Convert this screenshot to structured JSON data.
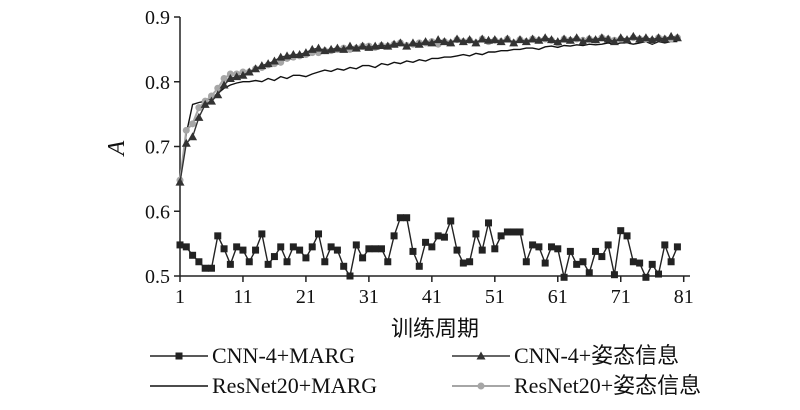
{
  "chart_data": {
    "type": "line",
    "title": "",
    "xlabel": "训练周期",
    "ylabel": "A",
    "xlim": [
      1,
      82
    ],
    "ylim": [
      0.5,
      0.9
    ],
    "xticks": [
      1,
      11,
      21,
      31,
      41,
      51,
      61,
      71,
      81
    ],
    "yticks": [
      0.5,
      0.6,
      0.7,
      0.8,
      0.9
    ],
    "yticks_text": [
      "0.5",
      "0.6",
      "0.7",
      "0.8",
      "0.9"
    ],
    "grid": false,
    "legend_position": "bottom",
    "series": [
      {
        "name": "CNN-4+MARG",
        "marker": "square",
        "color": "#222222",
        "values": [
          0.548,
          0.545,
          0.532,
          0.522,
          0.512,
          0.512,
          0.562,
          0.542,
          0.518,
          0.545,
          0.54,
          0.522,
          0.54,
          0.565,
          0.518,
          0.53,
          0.545,
          0.522,
          0.545,
          0.54,
          0.528,
          0.545,
          0.565,
          0.522,
          0.545,
          0.54,
          0.515,
          0.5,
          0.548,
          0.528,
          0.542,
          0.542,
          0.542,
          0.522,
          0.562,
          0.59,
          0.59,
          0.538,
          0.515,
          0.552,
          0.545,
          0.562,
          0.56,
          0.585,
          0.54,
          0.52,
          0.522,
          0.565,
          0.54,
          0.582,
          0.542,
          0.562,
          0.568,
          0.568,
          0.568,
          0.522,
          0.548,
          0.545,
          0.52,
          0.545,
          0.542,
          0.498,
          0.538,
          0.518,
          0.522,
          0.505,
          0.538,
          0.53,
          0.548,
          0.502,
          0.57,
          0.562,
          0.522,
          0.52,
          0.498,
          0.518,
          0.503,
          0.548,
          0.522,
          0.545
        ]
      },
      {
        "name": "CNN-4+姿态信息",
        "marker": "triangle",
        "color": "#333333",
        "values": [
          0.645,
          0.705,
          0.715,
          0.745,
          0.765,
          0.77,
          0.78,
          0.795,
          0.805,
          0.808,
          0.81,
          0.815,
          0.82,
          0.825,
          0.828,
          0.832,
          0.838,
          0.84,
          0.842,
          0.842,
          0.845,
          0.85,
          0.852,
          0.848,
          0.85,
          0.852,
          0.85,
          0.855,
          0.852,
          0.855,
          0.853,
          0.855,
          0.856,
          0.855,
          0.858,
          0.86,
          0.855,
          0.86,
          0.858,
          0.862,
          0.86,
          0.865,
          0.862,
          0.86,
          0.866,
          0.862,
          0.865,
          0.86,
          0.866,
          0.864,
          0.865,
          0.862,
          0.866,
          0.86,
          0.865,
          0.862,
          0.866,
          0.864,
          0.868,
          0.865,
          0.862,
          0.866,
          0.864,
          0.868,
          0.862,
          0.866,
          0.865,
          0.868,
          0.866,
          0.862,
          0.868,
          0.865,
          0.87,
          0.866,
          0.868,
          0.865,
          0.868,
          0.866,
          0.87,
          0.868
        ]
      },
      {
        "name": "ResNet20+MARG",
        "marker": "none",
        "color": "#111111",
        "values": [
          0.645,
          0.72,
          0.765,
          0.768,
          0.77,
          0.775,
          0.782,
          0.79,
          0.795,
          0.798,
          0.8,
          0.8,
          0.802,
          0.8,
          0.805,
          0.802,
          0.808,
          0.805,
          0.81,
          0.81,
          0.808,
          0.812,
          0.815,
          0.818,
          0.816,
          0.82,
          0.818,
          0.822,
          0.82,
          0.825,
          0.825,
          0.822,
          0.828,
          0.826,
          0.83,
          0.828,
          0.832,
          0.83,
          0.834,
          0.832,
          0.836,
          0.836,
          0.838,
          0.838,
          0.84,
          0.842,
          0.84,
          0.844,
          0.842,
          0.846,
          0.846,
          0.848,
          0.848,
          0.85,
          0.85,
          0.852,
          0.852,
          0.85,
          0.854,
          0.855,
          0.853,
          0.856,
          0.855,
          0.857,
          0.856,
          0.858,
          0.857,
          0.858,
          0.86,
          0.858,
          0.86,
          0.86,
          0.858,
          0.86,
          0.862,
          0.858,
          0.862,
          0.86,
          0.862,
          0.862
        ]
      },
      {
        "name": "ResNet20+姿态信息",
        "marker": "circle",
        "color": "#a6a6a6",
        "values": [
          0.648,
          0.725,
          0.735,
          0.76,
          0.77,
          0.778,
          0.79,
          0.805,
          0.812,
          0.812,
          0.815,
          0.815,
          0.82,
          0.822,
          0.826,
          0.828,
          0.83,
          0.836,
          0.838,
          0.84,
          0.842,
          0.845,
          0.845,
          0.848,
          0.848,
          0.85,
          0.852,
          0.85,
          0.852,
          0.855,
          0.855,
          0.853,
          0.856,
          0.855,
          0.858,
          0.86,
          0.856,
          0.858,
          0.86,
          0.86,
          0.862,
          0.858,
          0.862,
          0.86,
          0.865,
          0.862,
          0.864,
          0.86,
          0.866,
          0.862,
          0.864,
          0.862,
          0.866,
          0.86,
          0.865,
          0.862,
          0.866,
          0.864,
          0.866,
          0.864,
          0.86,
          0.866,
          0.864,
          0.866,
          0.864,
          0.866,
          0.864,
          0.868,
          0.866,
          0.864,
          0.866,
          0.864,
          0.868,
          0.866,
          0.866,
          0.864,
          0.868,
          0.866,
          0.866,
          0.868
        ]
      }
    ]
  }
}
